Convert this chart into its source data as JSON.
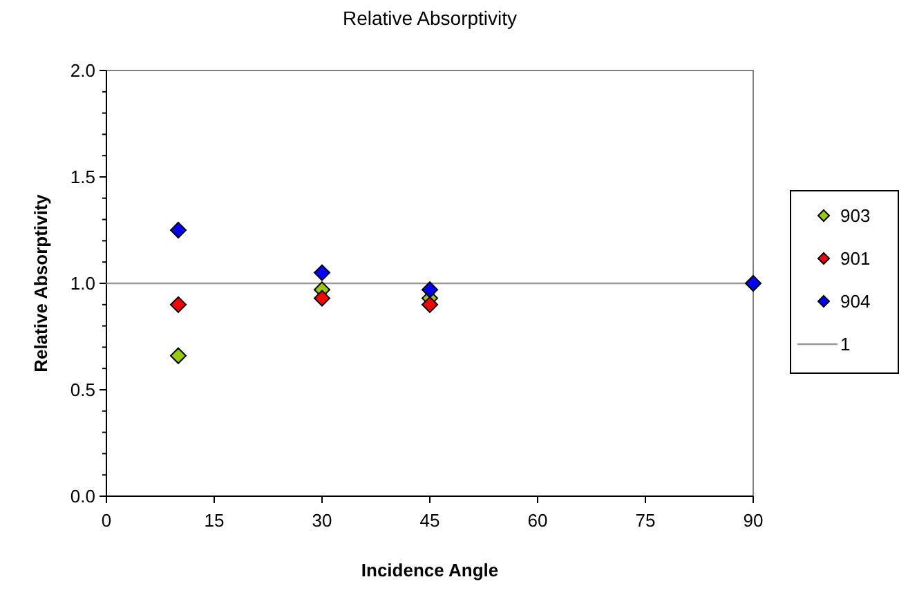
{
  "chart_data": {
    "type": "scatter",
    "title": "Relative Absorptivity",
    "xlabel": "Incidence Angle",
    "ylabel": "Relative Absorptivity",
    "x": [
      10,
      30,
      45,
      90
    ],
    "series": [
      {
        "name": "903",
        "color": "#99cc00",
        "values": [
          0.66,
          0.97,
          0.93,
          null
        ]
      },
      {
        "name": "901",
        "color": "#ff0000",
        "values": [
          0.9,
          0.93,
          0.9,
          null
        ]
      },
      {
        "name": "904",
        "color": "#0000ff",
        "values": [
          1.25,
          1.05,
          0.97,
          1.0
        ]
      },
      {
        "name": "1",
        "type": "line",
        "color": "#999999",
        "x": [
          0,
          90
        ],
        "values": [
          1,
          1
        ],
        "marker": "none"
      }
    ],
    "marker": "diamond",
    "xlim": [
      0,
      90
    ],
    "xticks": [
      0,
      15,
      30,
      45,
      60,
      75,
      90
    ],
    "ylim": [
      0,
      2
    ],
    "yticks": [
      {
        "value": 0,
        "label": "0.0"
      },
      {
        "value": 0.1,
        "label": null
      },
      {
        "value": 0.2,
        "label": null
      },
      {
        "value": 0.3,
        "label": null
      },
      {
        "value": 0.4,
        "label": null
      },
      {
        "value": 0.5,
        "label": "0.5"
      },
      {
        "value": 0.6,
        "label": null
      },
      {
        "value": 0.7,
        "label": null
      },
      {
        "value": 0.8,
        "label": null
      },
      {
        "value": 0.9,
        "label": null
      },
      {
        "value": 1,
        "label": "1.0"
      },
      {
        "value": 1.1,
        "label": null
      },
      {
        "value": 1.2,
        "label": null
      },
      {
        "value": 1.3,
        "label": null
      },
      {
        "value": 1.4,
        "label": null
      },
      {
        "value": 1.5,
        "label": "1.5"
      },
      {
        "value": 1.6,
        "label": null
      },
      {
        "value": 1.7,
        "label": null
      },
      {
        "value": 1.8,
        "label": null
      },
      {
        "value": 1.9,
        "label": null
      },
      {
        "value": 2,
        "label": "2.0"
      }
    ],
    "legend": "right"
  }
}
